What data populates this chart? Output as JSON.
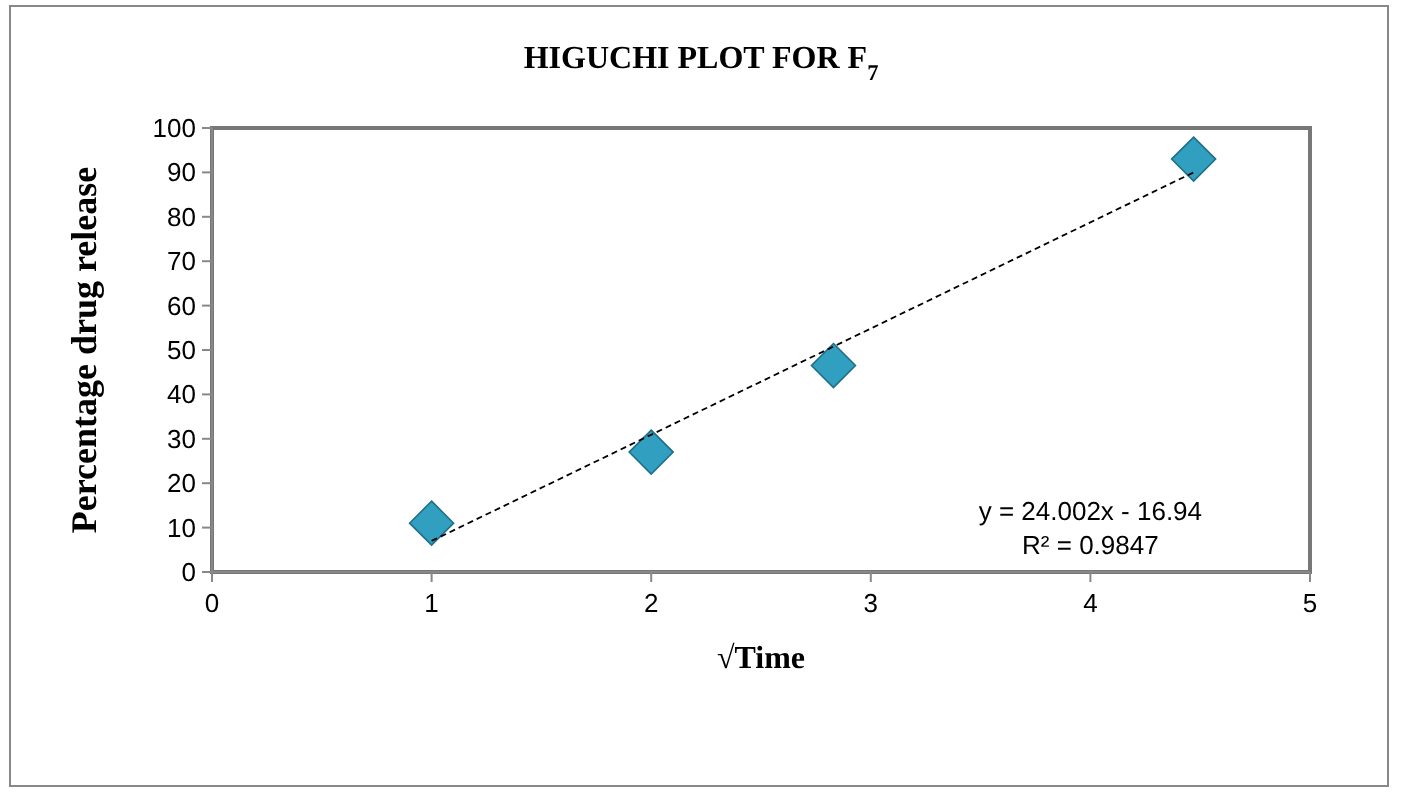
{
  "chart_data": {
    "type": "scatter",
    "title": "HIGUCHI PLOT FOR F$_{7}$",
    "xlabel": "√Time",
    "ylabel": "Percentage  drug release",
    "x": [
      1,
      2,
      2.83,
      4.47
    ],
    "series": [
      {
        "color": "#31a0c0",
        "values": [
          11,
          27,
          46.5,
          93
        ],
        "marker": "diamond"
      },
      {
        "type": "line",
        "color": "#000000",
        "x": [
          1,
          4.47
        ],
        "values": [
          7,
          90
        ],
        "line_style": "dashed"
      }
    ],
    "annotations": [
      "y = 24.002x - 16.94",
      "R² = 0.9847"
    ],
    "xlim": [
      0,
      5
    ],
    "xticks": [
      0,
      1,
      2,
      3,
      4,
      5
    ],
    "ylim": [
      0,
      100
    ],
    "yticks": [
      0,
      10,
      20,
      30,
      40,
      50,
      60,
      70,
      80,
      90,
      100
    ],
    "grid": false
  }
}
